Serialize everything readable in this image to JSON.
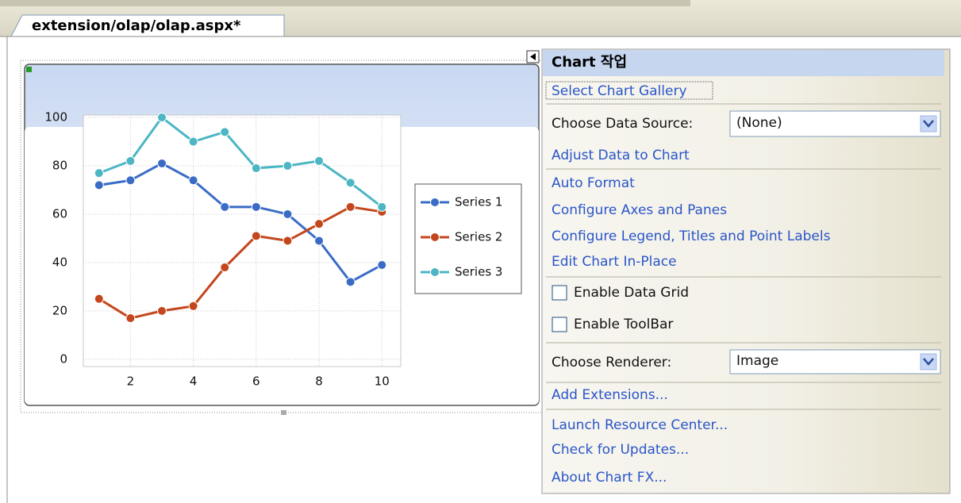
{
  "tab": {
    "title": "extension/olap/olap.aspx*"
  },
  "chart_data": {
    "type": "line",
    "x": [
      1,
      2,
      3,
      4,
      5,
      6,
      7,
      8,
      9,
      10
    ],
    "series": [
      {
        "name": "Series 1",
        "color": "#3a6cc6",
        "values": [
          72,
          74,
          81,
          74,
          63,
          63,
          60,
          49,
          32,
          39
        ]
      },
      {
        "name": "Series 2",
        "color": "#c4461c",
        "values": [
          25,
          17,
          20,
          22,
          38,
          51,
          49,
          56,
          63,
          61
        ]
      },
      {
        "name": "Series 3",
        "color": "#4cb6c4",
        "values": [
          77,
          82,
          100,
          90,
          94,
          79,
          80,
          82,
          73,
          63
        ]
      }
    ],
    "xlim": [
      0.5,
      10.6
    ],
    "ylim": [
      -3,
      101
    ],
    "xticks": [
      2,
      4,
      6,
      8,
      10
    ],
    "yticks": [
      0,
      20,
      40,
      60,
      80,
      100
    ],
    "grid": true,
    "legend": "right"
  },
  "panel": {
    "title": "Chart 작업",
    "gallery": "Select Chart Gallery",
    "data_source_label": "Choose Data Source:",
    "data_source_value": "(None)",
    "adjust": "Adjust Data to Chart",
    "auto_format": "Auto Format",
    "axes": "Configure Axes and Panes",
    "legend": "Configure Legend, Titles and Point Labels",
    "edit": "Edit Chart In-Place",
    "data_grid": "Enable Data Grid",
    "toolbar": "Enable ToolBar",
    "renderer_label": "Choose Renderer:",
    "renderer_value": "Image",
    "extensions": "Add Extensions...",
    "resource_center": "Launch Resource Center...",
    "updates": "Check for Updates...",
    "about": "About Chart FX..."
  }
}
